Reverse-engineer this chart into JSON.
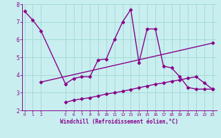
{
  "xlabel": "Windchill (Refroidissement éolien,°C)",
  "bg_color": "#c8eef0",
  "line_color": "#880088",
  "grid_color": "#a0d8d0",
  "xticks": [
    0,
    1,
    2,
    5,
    6,
    7,
    8,
    9,
    10,
    11,
    12,
    13,
    14,
    15,
    16,
    17,
    18,
    19,
    20,
    21,
    22,
    23
  ],
  "xlim": [
    -0.3,
    23.5
  ],
  "ylim": [
    2,
    8
  ],
  "yticks": [
    2,
    3,
    4,
    5,
    6,
    7,
    8
  ],
  "series": [
    {
      "x": [
        0,
        1,
        2,
        5,
        6,
        7,
        8,
        9,
        10,
        11,
        12,
        13,
        14,
        15,
        16,
        17,
        18,
        19,
        20,
        21,
        22,
        23
      ],
      "y": [
        7.6,
        7.1,
        6.5,
        3.5,
        3.8,
        3.9,
        3.9,
        4.85,
        4.9,
        6.0,
        7.0,
        7.7,
        4.7,
        6.6,
        6.6,
        4.5,
        4.4,
        3.9,
        3.3,
        3.2,
        3.2,
        3.2
      ]
    },
    {
      "x": [
        2,
        23
      ],
      "y": [
        3.6,
        5.8
      ]
    },
    {
      "x": [
        5,
        6,
        7,
        8,
        9,
        10,
        11,
        12,
        13,
        14,
        15,
        16,
        17,
        18,
        19,
        20,
        21,
        22,
        23
      ],
      "y": [
        2.45,
        2.58,
        2.65,
        2.72,
        2.82,
        2.92,
        3.0,
        3.08,
        3.18,
        3.28,
        3.38,
        3.48,
        3.55,
        3.65,
        3.72,
        3.82,
        3.9,
        3.55,
        3.2
      ]
    }
  ],
  "marker": "D",
  "markersize": 2.5,
  "linewidth": 1.0
}
